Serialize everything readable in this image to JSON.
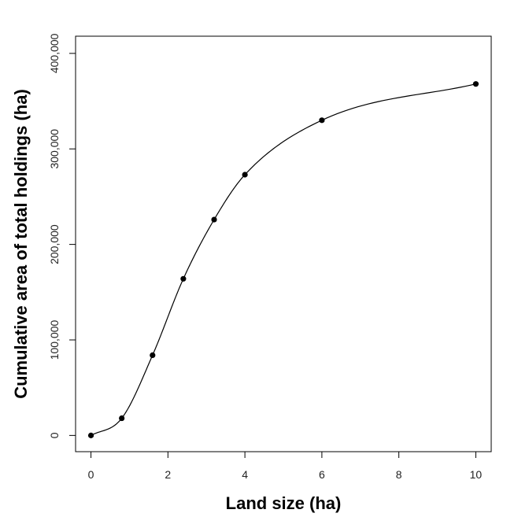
{
  "chart_data": {
    "type": "line",
    "title": "",
    "xlabel": "Land size (ha)",
    "ylabel": "Cumulative area of total holdings (ha)",
    "xlim": [
      -0.4,
      10.4
    ],
    "ylim": [
      -17000,
      418000
    ],
    "x_ticks": [
      0,
      2,
      4,
      6,
      8,
      10
    ],
    "x_tick_labels": [
      "0",
      "2",
      "4",
      "6",
      "8",
      "10"
    ],
    "y_ticks": [
      0,
      100000,
      200000,
      300000,
      400000
    ],
    "y_tick_labels": [
      "0",
      "100,000",
      "200,000",
      "300,000",
      "400,000"
    ],
    "grid": false,
    "series": [
      {
        "x": [
          0,
          0.8,
          1.6,
          2.4,
          3.2,
          4,
          6,
          10
        ],
        "y": [
          0,
          18000,
          84000,
          164000,
          226000,
          273000,
          330000,
          368000
        ],
        "markers": true,
        "smooth": true,
        "color": "#000000"
      }
    ]
  }
}
